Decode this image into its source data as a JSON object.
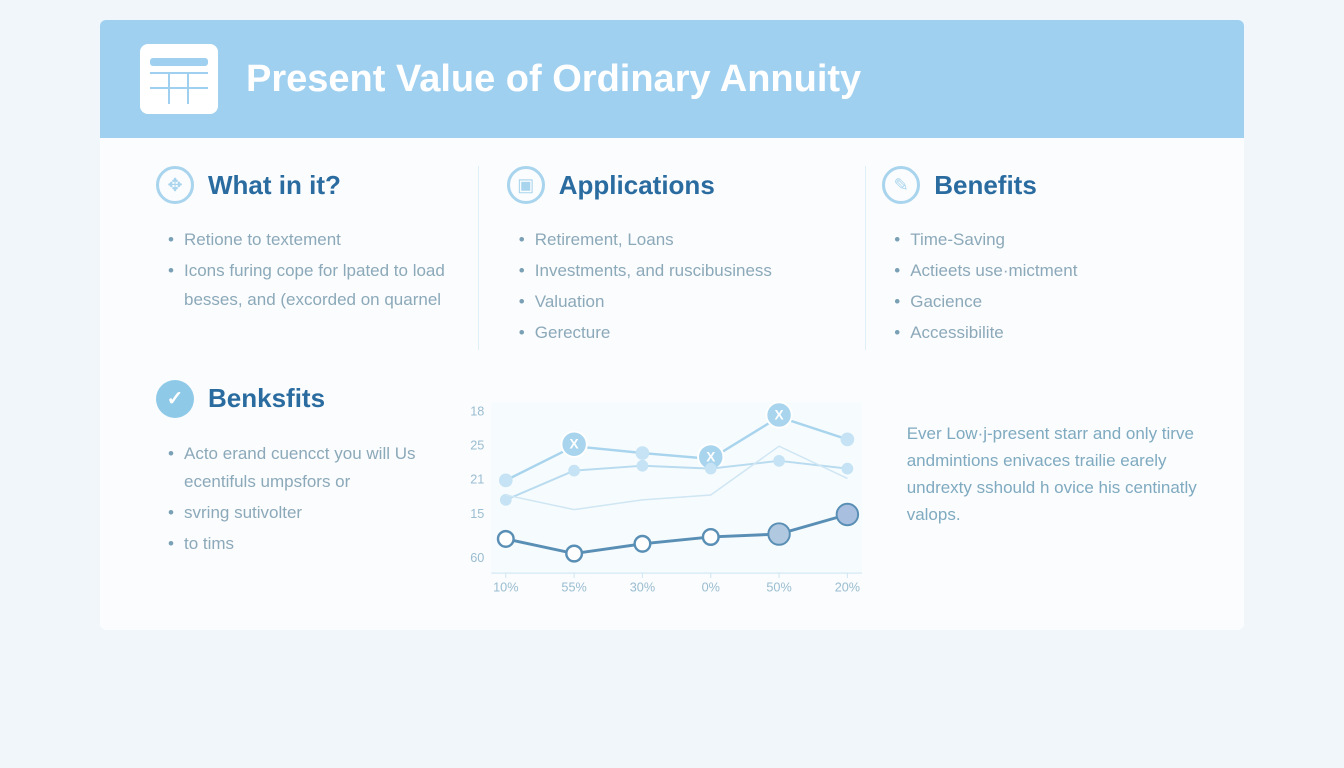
{
  "header": {
    "title": "Present Value of Ordinary Annuity",
    "background_color": "#a0d0f0",
    "title_color": "#ffffff",
    "title_fontsize": 38
  },
  "columns": [
    {
      "title": "What in it?",
      "icon_glyph": "✥",
      "items": [
        "Retione to textement",
        "Icons furing cope for lpated to load besses, and (excorded on quarnel"
      ]
    },
    {
      "title": "Applications",
      "icon_glyph": "▣",
      "items": [
        "Retirement, Loans",
        "Investments, and ruscibusiness",
        "Valuation",
        "Gerecture"
      ]
    },
    {
      "title": "Benefits",
      "icon_glyph": "✎",
      "items": [
        "Time-Saving",
        "Actieets use·mictment",
        "Gacience",
        "Accessibilite"
      ]
    }
  ],
  "benksfits": {
    "title": "Benksfits",
    "icon_glyph": "✓",
    "items": [
      "Acto erand cuencct you will Us ecentifuls umpsfors or",
      "svring sutivolter",
      "to tims"
    ]
  },
  "side_note": "Ever Low·j-present starr and only tirve andmintions enivaces trailie earely undrexty sshould h ovice his centinatly valops.",
  "chart": {
    "type": "line",
    "xlabels": [
      "10%",
      "55%",
      "30%",
      "0%",
      "50%",
      "20%"
    ],
    "ylabels": [
      "18",
      "25",
      "21",
      "15",
      "60"
    ],
    "y_positions": [
      20,
      55,
      90,
      125,
      170
    ],
    "x_positions": [
      50,
      120,
      190,
      260,
      330,
      400
    ],
    "plot_background": "#f6fbfe",
    "axis_color": "#cde5f2",
    "label_color": "#9abdd0",
    "label_fontsize": 13,
    "series": [
      {
        "name": "top",
        "color": "#a8d4ed",
        "stroke_width": 2.5,
        "marker": "circle",
        "marker_fill": "#c5e3f4",
        "marker_size": 7,
        "y_values": [
          90,
          55,
          62,
          68,
          25,
          48
        ],
        "x_markers_at": [
          1,
          3,
          4
        ]
      },
      {
        "name": "mid",
        "color": "#b8dbef",
        "stroke_width": 2,
        "marker": "circle",
        "marker_fill": "#c5e3f4",
        "marker_size": 6,
        "y_values": [
          110,
          80,
          75,
          78,
          70,
          78
        ],
        "x_markers_at": []
      },
      {
        "name": "cross",
        "color": "#cfe6f3",
        "stroke_width": 1.5,
        "marker": "none",
        "marker_size": 0,
        "y_values": [
          105,
          120,
          110,
          105,
          55,
          88
        ],
        "x_markers_at": []
      },
      {
        "name": "bottom",
        "color": "#5a8fb5",
        "stroke_width": 3,
        "marker": "circle-open",
        "marker_fill": "#ffffff",
        "marker_stroke": "#5a8fb5",
        "marker_size": 8,
        "y_values": [
          150,
          165,
          155,
          148,
          145,
          125
        ],
        "x_markers_at": [],
        "special_markers": [
          {
            "index": 4,
            "size": 11,
            "fill": "#b0c8e0"
          },
          {
            "index": 5,
            "size": 11,
            "fill": "#a8bfe0"
          }
        ]
      }
    ]
  },
  "colors": {
    "heading": "#2a6ca0",
    "body_text": "#8ca9b9",
    "icon_ring": "#a8d4ed",
    "page_bg": "#f0f6fa",
    "card_bg": "#fafcfe",
    "divider": "#e0eef7"
  }
}
